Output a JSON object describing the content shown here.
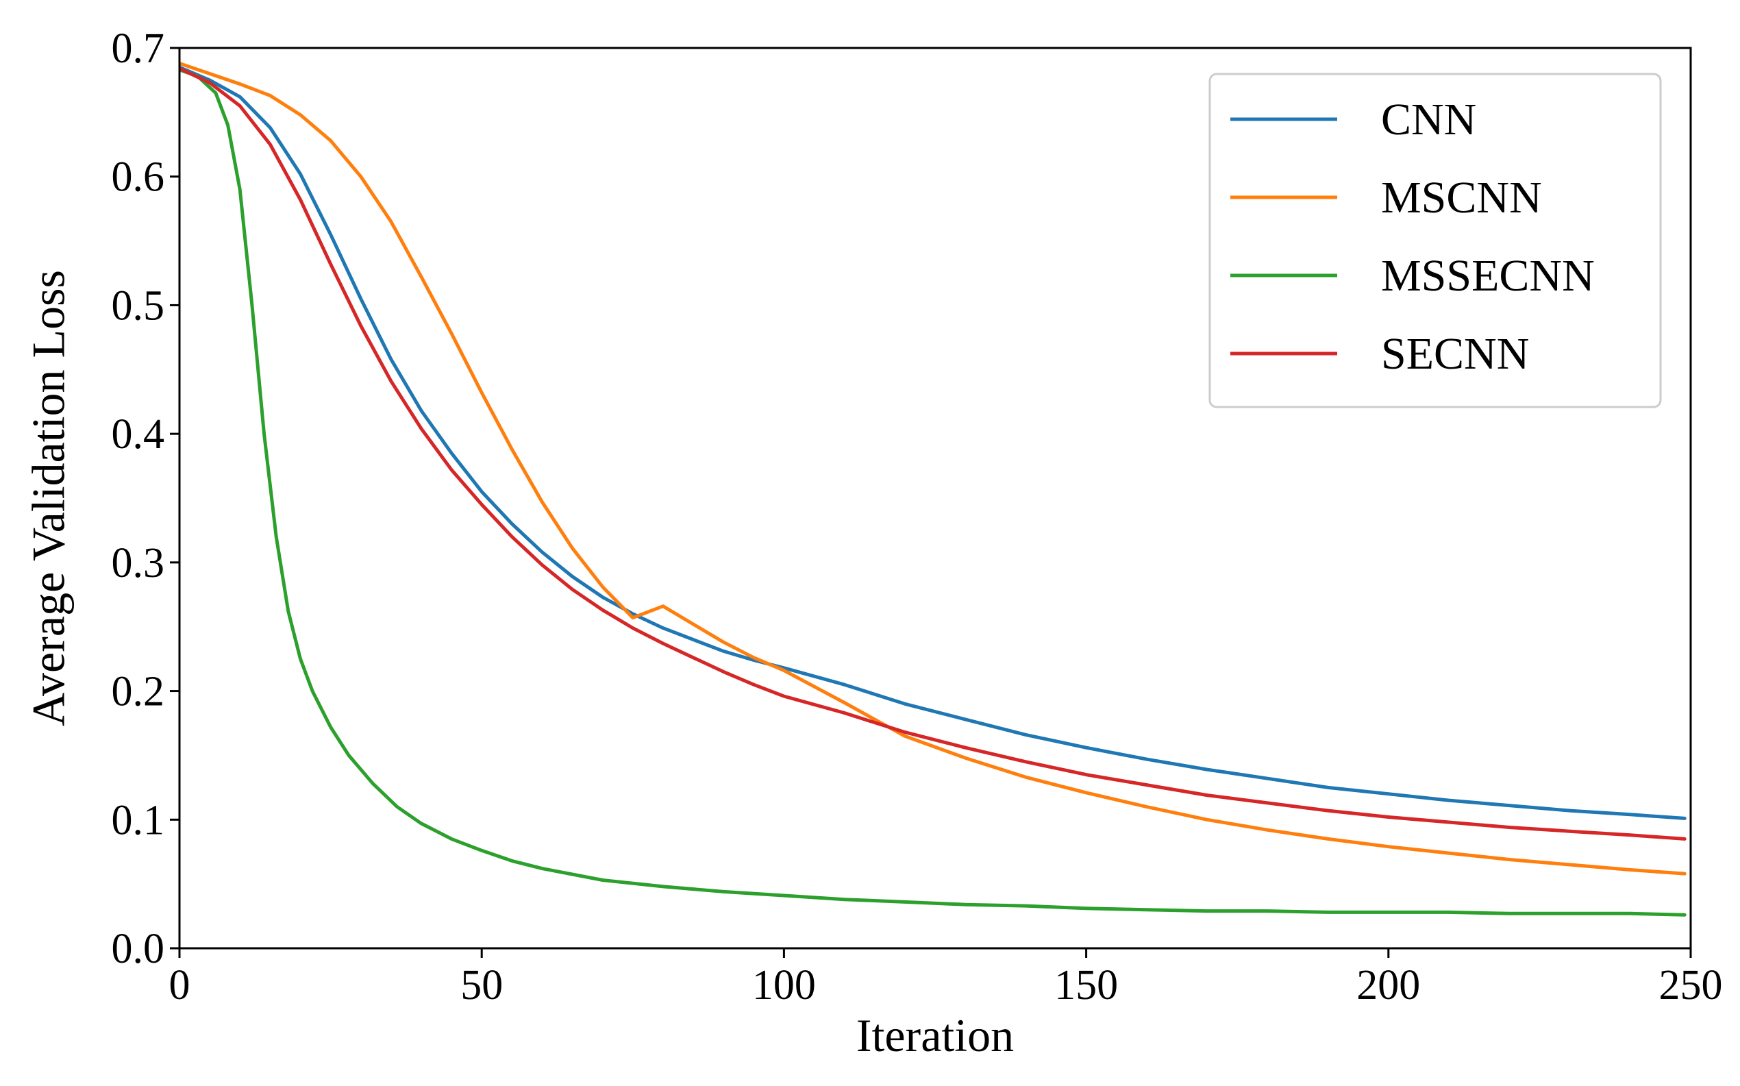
{
  "chart_data": {
    "type": "line",
    "title": "",
    "xlabel": "Iteration",
    "ylabel": "Average Validation Loss",
    "xlim": [
      0,
      250
    ],
    "ylim": [
      0.0,
      0.7
    ],
    "xticks": [
      0,
      50,
      100,
      150,
      200,
      250
    ],
    "yticks": [
      0.0,
      0.1,
      0.2,
      0.3,
      0.4,
      0.5,
      0.6,
      0.7
    ],
    "xtick_labels": [
      "0",
      "50",
      "100",
      "150",
      "200",
      "250"
    ],
    "ytick_labels": [
      "0.0",
      "0.1",
      "0.2",
      "0.3",
      "0.4",
      "0.5",
      "0.6",
      "0.7"
    ],
    "grid": false,
    "legend_position": "top-right",
    "series": [
      {
        "name": "CNN",
        "color": "#1f77b4",
        "x": [
          0,
          5,
          10,
          15,
          20,
          25,
          30,
          35,
          40,
          45,
          50,
          55,
          60,
          65,
          70,
          75,
          80,
          85,
          90,
          95,
          100,
          110,
          120,
          130,
          140,
          150,
          160,
          170,
          180,
          190,
          200,
          210,
          220,
          230,
          240,
          249
        ],
        "values": [
          0.685,
          0.675,
          0.662,
          0.638,
          0.602,
          0.555,
          0.505,
          0.458,
          0.418,
          0.385,
          0.355,
          0.33,
          0.308,
          0.289,
          0.273,
          0.26,
          0.249,
          0.24,
          0.231,
          0.224,
          0.218,
          0.205,
          0.19,
          0.178,
          0.166,
          0.156,
          0.147,
          0.139,
          0.132,
          0.125,
          0.12,
          0.115,
          0.111,
          0.107,
          0.104,
          0.101
        ]
      },
      {
        "name": "MSCNN",
        "color": "#ff7f0e",
        "x": [
          0,
          5,
          10,
          15,
          20,
          25,
          30,
          35,
          40,
          45,
          50,
          55,
          60,
          65,
          70,
          75,
          80,
          85,
          90,
          95,
          100,
          110,
          120,
          130,
          140,
          150,
          160,
          170,
          180,
          190,
          200,
          210,
          220,
          230,
          240,
          249
        ],
        "values": [
          0.688,
          0.68,
          0.672,
          0.663,
          0.648,
          0.628,
          0.6,
          0.565,
          0.522,
          0.478,
          0.432,
          0.388,
          0.347,
          0.311,
          0.281,
          0.257,
          0.266,
          0.252,
          0.238,
          0.226,
          0.216,
          0.191,
          0.165,
          0.148,
          0.133,
          0.121,
          0.11,
          0.1,
          0.092,
          0.085,
          0.079,
          0.074,
          0.069,
          0.065,
          0.061,
          0.058
        ]
      },
      {
        "name": "MSSECNN",
        "color": "#2ca02c",
        "x": [
          0,
          3,
          6,
          8,
          10,
          12,
          14,
          16,
          18,
          20,
          22,
          25,
          28,
          32,
          36,
          40,
          45,
          50,
          55,
          60,
          70,
          80,
          90,
          100,
          110,
          120,
          130,
          140,
          150,
          160,
          170,
          180,
          190,
          200,
          210,
          220,
          230,
          240,
          249
        ],
        "values": [
          0.683,
          0.678,
          0.665,
          0.64,
          0.59,
          0.5,
          0.4,
          0.32,
          0.262,
          0.225,
          0.2,
          0.172,
          0.15,
          0.128,
          0.11,
          0.097,
          0.085,
          0.076,
          0.068,
          0.062,
          0.053,
          0.048,
          0.044,
          0.041,
          0.038,
          0.036,
          0.034,
          0.033,
          0.031,
          0.03,
          0.029,
          0.029,
          0.028,
          0.028,
          0.028,
          0.027,
          0.027,
          0.027,
          0.026
        ]
      },
      {
        "name": "SECNN",
        "color": "#d62728",
        "x": [
          0,
          5,
          10,
          15,
          20,
          25,
          30,
          35,
          40,
          45,
          50,
          55,
          60,
          65,
          70,
          75,
          80,
          85,
          90,
          95,
          100,
          110,
          120,
          130,
          140,
          150,
          160,
          170,
          180,
          190,
          200,
          210,
          220,
          230,
          240,
          249
        ],
        "values": [
          0.684,
          0.673,
          0.655,
          0.625,
          0.582,
          0.532,
          0.484,
          0.441,
          0.404,
          0.372,
          0.345,
          0.32,
          0.298,
          0.279,
          0.263,
          0.249,
          0.237,
          0.226,
          0.215,
          0.205,
          0.196,
          0.183,
          0.168,
          0.156,
          0.145,
          0.135,
          0.127,
          0.119,
          0.113,
          0.107,
          0.102,
          0.098,
          0.094,
          0.091,
          0.088,
          0.085
        ]
      }
    ]
  }
}
